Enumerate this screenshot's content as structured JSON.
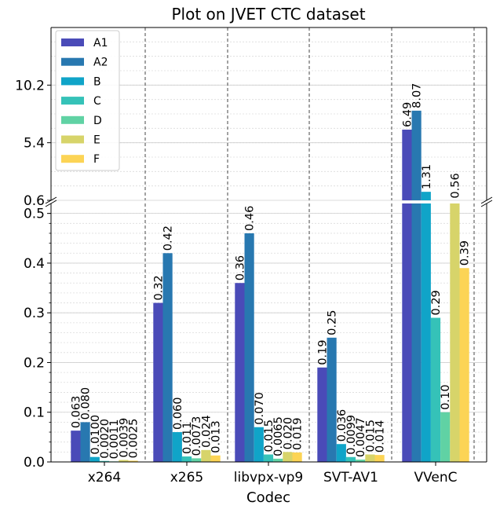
{
  "chart_data": {
    "type": "bar",
    "title": "Plot on JVET CTC dataset",
    "xlabel": "Codec",
    "ylabel": "",
    "categories": [
      "x264",
      "x265",
      "libvpx-vp9",
      "SVT-AV1",
      "VVenC"
    ],
    "broken_axis": {
      "upper_range": [
        0.6,
        15.0
      ],
      "upper_ticks": [
        "0.6",
        "5.4",
        "10.2"
      ],
      "lower_range": [
        0.0,
        0.52
      ],
      "lower_ticks": [
        "0.0",
        "0.1",
        "0.2",
        "0.3",
        "0.4",
        "0.5"
      ]
    },
    "grid": true,
    "legend_position": "top-left",
    "series": [
      {
        "name": "A1",
        "color": "#4a4bb8",
        "values": [
          0.063,
          0.32,
          0.36,
          0.19,
          6.49
        ],
        "labels": [
          "0.063",
          "0.32",
          "0.36",
          "0.19",
          "6.49"
        ]
      },
      {
        "name": "A2",
        "color": "#2878b0",
        "values": [
          0.08,
          0.42,
          0.46,
          0.25,
          8.07
        ],
        "labels": [
          "0.080",
          "0.42",
          "0.46",
          "0.25",
          "8.07"
        ]
      },
      {
        "name": "B",
        "color": "#10a4c8",
        "values": [
          0.01,
          0.06,
          0.07,
          0.036,
          1.31
        ],
        "labels": [
          "0.0100",
          "0.060",
          "0.070",
          "0.036",
          "1.31"
        ]
      },
      {
        "name": "C",
        "color": "#35c2b8",
        "values": [
          0.002,
          0.011,
          0.015,
          0.0099,
          0.29
        ],
        "labels": [
          "0.0020",
          "0.011",
          "0.015",
          "0.0099",
          "0.29"
        ]
      },
      {
        "name": "D",
        "color": "#60d2a4",
        "values": [
          0.0011,
          0.0073,
          0.0065,
          0.0047,
          0.1
        ],
        "labels": [
          "0.0011",
          "0.0073",
          "0.0065",
          "0.0047",
          "0.10"
        ]
      },
      {
        "name": "E",
        "color": "#d7d46a",
        "values": [
          0.0039,
          0.024,
          0.02,
          0.015,
          0.56
        ],
        "labels": [
          "0.0039",
          "0.024",
          "0.020",
          "0.015",
          "0.56"
        ]
      },
      {
        "name": "F",
        "color": "#fcd455",
        "values": [
          0.0025,
          0.013,
          0.019,
          0.014,
          0.39
        ],
        "labels": [
          "0.0025",
          "0.013",
          "0.019",
          "0.014",
          "0.39"
        ]
      }
    ]
  }
}
